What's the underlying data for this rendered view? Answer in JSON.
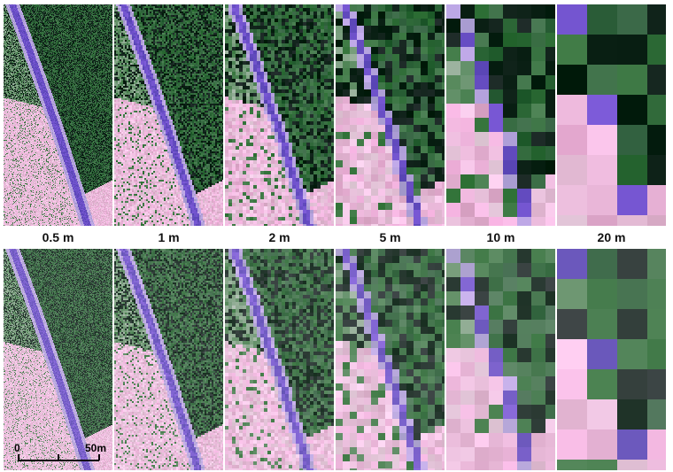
{
  "resolutions": [
    {
      "label": "0.5 m",
      "cell_m": 0.5
    },
    {
      "label": "1 m",
      "cell_m": 1
    },
    {
      "label": "2 m",
      "cell_m": 2
    },
    {
      "label": "5 m",
      "cell_m": 5
    },
    {
      "label": "10 m",
      "cell_m": 10
    },
    {
      "label": "20 m",
      "cell_m": 20
    }
  ],
  "scale_bar": {
    "start_label": "0",
    "end_label": "50m"
  },
  "colors": {
    "pink_field": "#e7a9d2",
    "green_vegetation": "#3e7a45",
    "dark_vegetation": "#10231a",
    "road_purple": "#6a4fc6",
    "light_ground": "#f0e6ee"
  }
}
